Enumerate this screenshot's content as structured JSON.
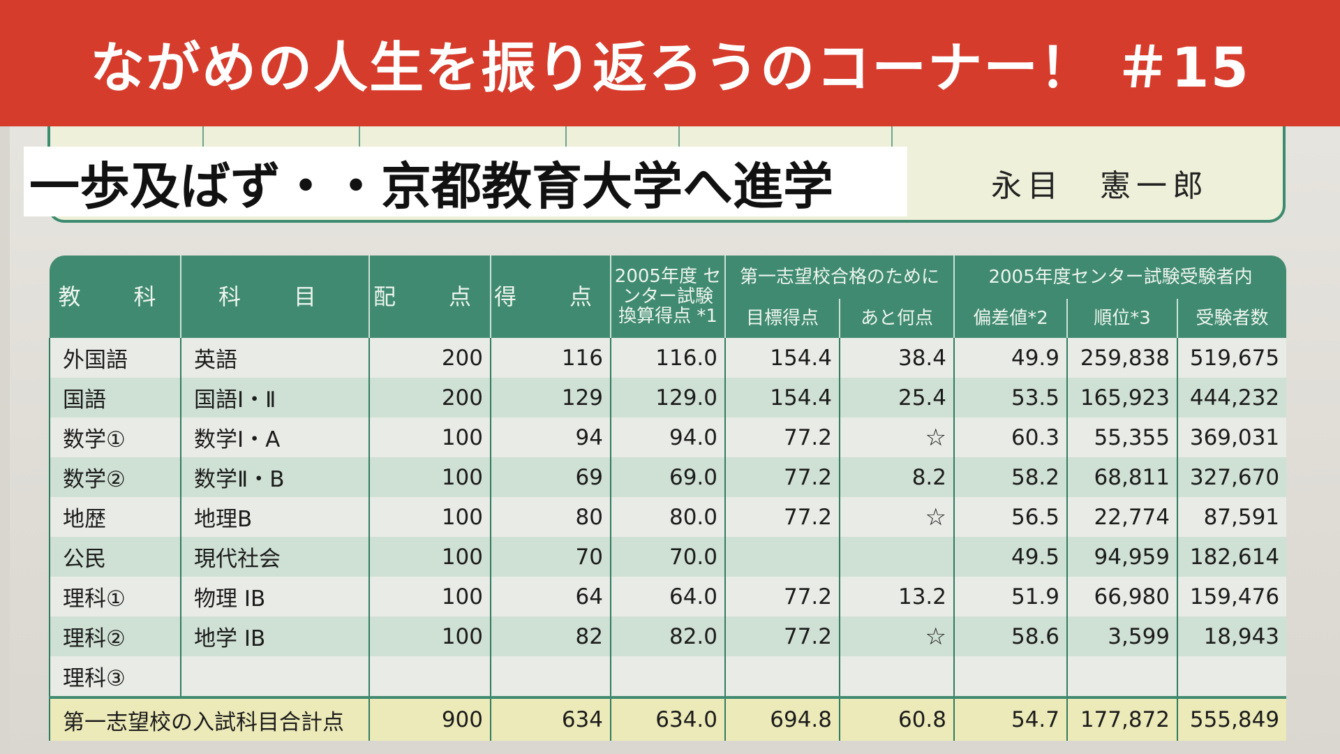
{
  "banner": {
    "title": "ながめの人生を振り返ろうのコーナー！ ＃15"
  },
  "caption": "一歩及ばず・・京都教育大学へ進学",
  "student_name": "永目　憲一郎",
  "table": {
    "header_top": {
      "kyouka": "教　科",
      "kamoku": "科　目",
      "haiten": "配　点",
      "tokuten": "得　点",
      "kansan": "2005年度 センター試験 換算得点 *1",
      "goal_group": "第一志望校合格のために",
      "center_group": "2005年度センター試験受験者内"
    },
    "header_sub": {
      "mokuhyou": "目標得点",
      "atonanten": "あと何点",
      "hensachi": "偏差値*2",
      "juni": "順位*3",
      "jukensha": "受験者数"
    },
    "rows": [
      {
        "kyouka": "外国語",
        "kamoku": "英語",
        "haiten": "200",
        "tokuten": "116",
        "kansan": "116.0",
        "mokuhyou": "154.4",
        "ato": "38.4",
        "hensa": "49.9",
        "juni": "259,838",
        "jukensha": "519,675"
      },
      {
        "kyouka": "国語",
        "kamoku": "国語Ⅰ・Ⅱ",
        "haiten": "200",
        "tokuten": "129",
        "kansan": "129.0",
        "mokuhyou": "154.4",
        "ato": "25.4",
        "hensa": "53.5",
        "juni": "165,923",
        "jukensha": "444,232"
      },
      {
        "kyouka": "数学①",
        "kamoku": "数学Ⅰ・A",
        "haiten": "100",
        "tokuten": "94",
        "kansan": "94.0",
        "mokuhyou": "77.2",
        "ato": "☆",
        "hensa": "60.3",
        "juni": "55,355",
        "jukensha": "369,031"
      },
      {
        "kyouka": "数学②",
        "kamoku": "数学Ⅱ・B",
        "haiten": "100",
        "tokuten": "69",
        "kansan": "69.0",
        "mokuhyou": "77.2",
        "ato": "8.2",
        "hensa": "58.2",
        "juni": "68,811",
        "jukensha": "327,670"
      },
      {
        "kyouka": "地歴",
        "kamoku": "地理B",
        "haiten": "100",
        "tokuten": "80",
        "kansan": "80.0",
        "mokuhyou": "77.2",
        "ato": "☆",
        "hensa": "56.5",
        "juni": "22,774",
        "jukensha": "87,591"
      },
      {
        "kyouka": "公民",
        "kamoku": "現代社会",
        "haiten": "100",
        "tokuten": "70",
        "kansan": "70.0",
        "mokuhyou": "",
        "ato": "",
        "hensa": "49.5",
        "juni": "94,959",
        "jukensha": "182,614"
      },
      {
        "kyouka": "理科①",
        "kamoku": "物理 IB",
        "haiten": "100",
        "tokuten": "64",
        "kansan": "64.0",
        "mokuhyou": "77.2",
        "ato": "13.2",
        "hensa": "51.9",
        "juni": "66,980",
        "jukensha": "159,476"
      },
      {
        "kyouka": "理科②",
        "kamoku": "地学 IB",
        "haiten": "100",
        "tokuten": "82",
        "kansan": "82.0",
        "mokuhyou": "77.2",
        "ato": "☆",
        "hensa": "58.6",
        "juni": "3,599",
        "jukensha": "18,943"
      },
      {
        "kyouka": "理科③",
        "kamoku": "",
        "haiten": "",
        "tokuten": "",
        "kansan": "",
        "mokuhyou": "",
        "ato": "",
        "hensa": "",
        "juni": "",
        "jukensha": ""
      }
    ],
    "total": {
      "label": "第一志望校の入試科目合計点",
      "haiten": "900",
      "tokuten": "634",
      "kansan": "634.0",
      "mokuhyou": "694.8",
      "ato": "60.8",
      "hensa": "54.7",
      "juni": "177,872",
      "jukensha": "555,849"
    }
  }
}
